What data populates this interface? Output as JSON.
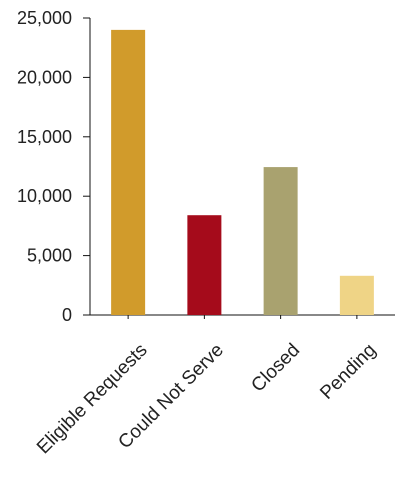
{
  "chart_data": {
    "type": "bar",
    "title": "",
    "xlabel": "",
    "ylabel": "",
    "categories": [
      "Eligible Requests",
      "Could Not Serve",
      "Closed",
      "Pending"
    ],
    "values": [
      24000,
      8400,
      12450,
      3300
    ],
    "colors": [
      "#D19B2B",
      "#A50B1B",
      "#A9A26F",
      "#EFD486"
    ],
    "ylim": [
      0,
      25000
    ],
    "yticks": [
      0,
      5000,
      10000,
      15000,
      20000,
      25000
    ],
    "ytick_labels": [
      "0",
      "5,000",
      "10,000",
      "15,000",
      "20,000",
      "25,000"
    ],
    "grid": false,
    "legend": "none",
    "axis_color": "#111111"
  }
}
